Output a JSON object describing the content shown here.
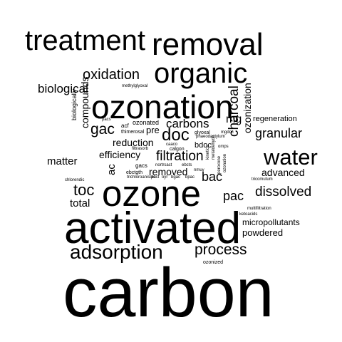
{
  "words": [
    "carbon",
    "activated",
    "ozone",
    "ozonation",
    "treatment",
    "removal",
    "organic",
    "adsorption",
    "water",
    "doc",
    "process",
    "gac",
    "oxidation",
    "biological",
    "charcoal",
    "ozonization",
    "granular",
    "dissolved",
    "toc",
    "total",
    "pac",
    "compounds",
    "matter",
    "filtration",
    "efficiency",
    "reduction",
    "removed",
    "carbons",
    "mg",
    "bac",
    "ac",
    "advanced",
    "regeneration",
    "micropollutants",
    "powdered",
    "biologically",
    "pre",
    "bdoc",
    "gacs",
    "ozonated",
    "acf",
    "thimerosal",
    "methylglyoxal",
    "pacs",
    "ebctgth",
    "ebcts",
    "caaco",
    "calgon",
    "glyoxal",
    "mgdoc",
    "phaeodactylum",
    "omps",
    "nmuv",
    "nortrsact",
    "filtrasorb",
    "chlorendic",
    "trichloroanisole",
    "pact",
    "oyr",
    "bgac",
    "bpac",
    "multifiltration",
    "ketoacids",
    "tricomutum",
    "ozonized",
    "ozonation",
    "peroxone",
    "metaldehyde",
    "kinetics"
  ],
  "color": "#000000"
}
